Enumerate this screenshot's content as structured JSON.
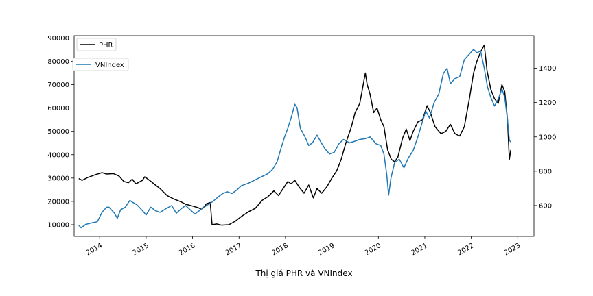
{
  "chart_data": {
    "type": "line",
    "caption": "Thị giá PHR và VNIndex",
    "x_ticks": [
      "2014",
      "2015",
      "2016",
      "2017",
      "2018",
      "2019",
      "2020",
      "2021",
      "2022",
      "2023"
    ],
    "x_range": [
      2013.45,
      2023.35
    ],
    "left_axis": {
      "ylim": [
        5000,
        91000
      ],
      "ticks": [
        10000,
        20000,
        30000,
        40000,
        50000,
        60000,
        70000,
        80000,
        90000
      ]
    },
    "right_axis": {
      "ylim": [
        420,
        1590
      ],
      "ticks": [
        600,
        800,
        1000,
        1200,
        1400
      ]
    },
    "legend": {
      "placement": "upper left"
    },
    "series": [
      {
        "name": "PHR",
        "axis": "left",
        "color": "#000000",
        "points": [
          [
            2013.55,
            29800
          ],
          [
            2013.62,
            29000
          ],
          [
            2013.75,
            30300
          ],
          [
            2013.92,
            31500
          ],
          [
            2014.05,
            32300
          ],
          [
            2014.15,
            31700
          ],
          [
            2014.3,
            31900
          ],
          [
            2014.42,
            30800
          ],
          [
            2014.52,
            28500
          ],
          [
            2014.62,
            28000
          ],
          [
            2014.7,
            29500
          ],
          [
            2014.78,
            27500
          ],
          [
            2014.92,
            29000
          ],
          [
            2014.97,
            30500
          ],
          [
            2015.02,
            29800
          ],
          [
            2015.12,
            28300
          ],
          [
            2015.2,
            27000
          ],
          [
            2015.3,
            25500
          ],
          [
            2015.45,
            22500
          ],
          [
            2015.6,
            21000
          ],
          [
            2015.75,
            19800
          ],
          [
            2015.85,
            18800
          ],
          [
            2016.0,
            18000
          ],
          [
            2016.12,
            17300
          ],
          [
            2016.2,
            16500
          ],
          [
            2016.3,
            19000
          ],
          [
            2016.38,
            19500
          ],
          [
            2016.42,
            10000
          ],
          [
            2016.52,
            10300
          ],
          [
            2016.62,
            9800
          ],
          [
            2016.78,
            10000
          ],
          [
            2016.92,
            11500
          ],
          [
            2017.05,
            13500
          ],
          [
            2017.2,
            15500
          ],
          [
            2017.35,
            17000
          ],
          [
            2017.5,
            20500
          ],
          [
            2017.62,
            22000
          ],
          [
            2017.75,
            24500
          ],
          [
            2017.85,
            22500
          ],
          [
            2017.95,
            25500
          ],
          [
            2018.05,
            28500
          ],
          [
            2018.12,
            27500
          ],
          [
            2018.2,
            29000
          ],
          [
            2018.3,
            26000
          ],
          [
            2018.4,
            23500
          ],
          [
            2018.5,
            27000
          ],
          [
            2018.6,
            21500
          ],
          [
            2018.68,
            25500
          ],
          [
            2018.78,
            23500
          ],
          [
            2018.9,
            26500
          ],
          [
            2019.0,
            30000
          ],
          [
            2019.1,
            33000
          ],
          [
            2019.2,
            38000
          ],
          [
            2019.3,
            45000
          ],
          [
            2019.42,
            52000
          ],
          [
            2019.5,
            58000
          ],
          [
            2019.6,
            62000
          ],
          [
            2019.72,
            75000
          ],
          [
            2019.76,
            70000
          ],
          [
            2019.82,
            66000
          ],
          [
            2019.9,
            58000
          ],
          [
            2019.97,
            60000
          ],
          [
            2020.05,
            55000
          ],
          [
            2020.12,
            52000
          ],
          [
            2020.2,
            42000
          ],
          [
            2020.28,
            38000
          ],
          [
            2020.35,
            37000
          ],
          [
            2020.42,
            39000
          ],
          [
            2020.52,
            47000
          ],
          [
            2020.6,
            51000
          ],
          [
            2020.68,
            46000
          ],
          [
            2020.75,
            50000
          ],
          [
            2020.85,
            54000
          ],
          [
            2020.95,
            55000
          ],
          [
            2021.05,
            61000
          ],
          [
            2021.12,
            58000
          ],
          [
            2021.22,
            52000
          ],
          [
            2021.35,
            49000
          ],
          [
            2021.45,
            50000
          ],
          [
            2021.55,
            53000
          ],
          [
            2021.65,
            49000
          ],
          [
            2021.75,
            48000
          ],
          [
            2021.85,
            52000
          ],
          [
            2021.95,
            63000
          ],
          [
            2022.05,
            75000
          ],
          [
            2022.12,
            80000
          ],
          [
            2022.2,
            84000
          ],
          [
            2022.28,
            87000
          ],
          [
            2022.34,
            76000
          ],
          [
            2022.42,
            68000
          ],
          [
            2022.5,
            64000
          ],
          [
            2022.58,
            62000
          ],
          [
            2022.66,
            70000
          ],
          [
            2022.72,
            67000
          ],
          [
            2022.78,
            55000
          ],
          [
            2022.82,
            38000
          ],
          [
            2022.85,
            42000
          ]
        ]
      },
      {
        "name": "VNIndex",
        "axis": "right",
        "color": "#1f77b4",
        "points": [
          [
            2013.55,
            485
          ],
          [
            2013.6,
            470
          ],
          [
            2013.7,
            490
          ],
          [
            2013.85,
            500
          ],
          [
            2013.95,
            505
          ],
          [
            2014.05,
            560
          ],
          [
            2014.15,
            590
          ],
          [
            2014.2,
            590
          ],
          [
            2014.32,
            555
          ],
          [
            2014.38,
            525
          ],
          [
            2014.45,
            575
          ],
          [
            2014.55,
            590
          ],
          [
            2014.65,
            630
          ],
          [
            2014.7,
            620
          ],
          [
            2014.8,
            605
          ],
          [
            2014.92,
            570
          ],
          [
            2015.0,
            545
          ],
          [
            2015.1,
            590
          ],
          [
            2015.2,
            570
          ],
          [
            2015.3,
            560
          ],
          [
            2015.42,
            580
          ],
          [
            2015.55,
            600
          ],
          [
            2015.65,
            555
          ],
          [
            2015.75,
            580
          ],
          [
            2015.85,
            600
          ],
          [
            2015.95,
            575
          ],
          [
            2016.05,
            550
          ],
          [
            2016.12,
            565
          ],
          [
            2016.2,
            580
          ],
          [
            2016.3,
            600
          ],
          [
            2016.42,
            620
          ],
          [
            2016.55,
            650
          ],
          [
            2016.65,
            670
          ],
          [
            2016.75,
            680
          ],
          [
            2016.85,
            670
          ],
          [
            2016.95,
            690
          ],
          [
            2017.05,
            715
          ],
          [
            2017.2,
            730
          ],
          [
            2017.35,
            750
          ],
          [
            2017.5,
            770
          ],
          [
            2017.62,
            785
          ],
          [
            2017.72,
            810
          ],
          [
            2017.82,
            855
          ],
          [
            2017.9,
            930
          ],
          [
            2017.98,
            1000
          ],
          [
            2018.05,
            1050
          ],
          [
            2018.12,
            1110
          ],
          [
            2018.2,
            1190
          ],
          [
            2018.25,
            1170
          ],
          [
            2018.32,
            1050
          ],
          [
            2018.42,
            1000
          ],
          [
            2018.5,
            950
          ],
          [
            2018.58,
            965
          ],
          [
            2018.68,
            1010
          ],
          [
            2018.75,
            975
          ],
          [
            2018.85,
            930
          ],
          [
            2018.95,
            900
          ],
          [
            2019.05,
            910
          ],
          [
            2019.15,
            960
          ],
          [
            2019.25,
            985
          ],
          [
            2019.38,
            965
          ],
          [
            2019.5,
            975
          ],
          [
            2019.6,
            985
          ],
          [
            2019.72,
            990
          ],
          [
            2019.82,
            1000
          ],
          [
            2019.95,
            960
          ],
          [
            2020.05,
            950
          ],
          [
            2020.12,
            900
          ],
          [
            2020.18,
            780
          ],
          [
            2020.22,
            660
          ],
          [
            2020.27,
            760
          ],
          [
            2020.35,
            850
          ],
          [
            2020.45,
            870
          ],
          [
            2020.55,
            820
          ],
          [
            2020.65,
            880
          ],
          [
            2020.75,
            920
          ],
          [
            2020.85,
            1000
          ],
          [
            2020.95,
            1090
          ],
          [
            2021.02,
            1150
          ],
          [
            2021.1,
            1110
          ],
          [
            2021.2,
            1200
          ],
          [
            2021.3,
            1250
          ],
          [
            2021.4,
            1370
          ],
          [
            2021.48,
            1400
          ],
          [
            2021.55,
            1310
          ],
          [
            2021.65,
            1340
          ],
          [
            2021.75,
            1350
          ],
          [
            2021.85,
            1450
          ],
          [
            2021.95,
            1480
          ],
          [
            2022.05,
            1510
          ],
          [
            2022.12,
            1490
          ],
          [
            2022.2,
            1500
          ],
          [
            2022.28,
            1400
          ],
          [
            2022.35,
            1290
          ],
          [
            2022.42,
            1230
          ],
          [
            2022.5,
            1180
          ],
          [
            2022.58,
            1220
          ],
          [
            2022.66,
            1280
          ],
          [
            2022.72,
            1230
          ],
          [
            2022.78,
            1100
          ],
          [
            2022.82,
            980
          ],
          [
            2022.85,
            970
          ]
        ]
      }
    ]
  }
}
